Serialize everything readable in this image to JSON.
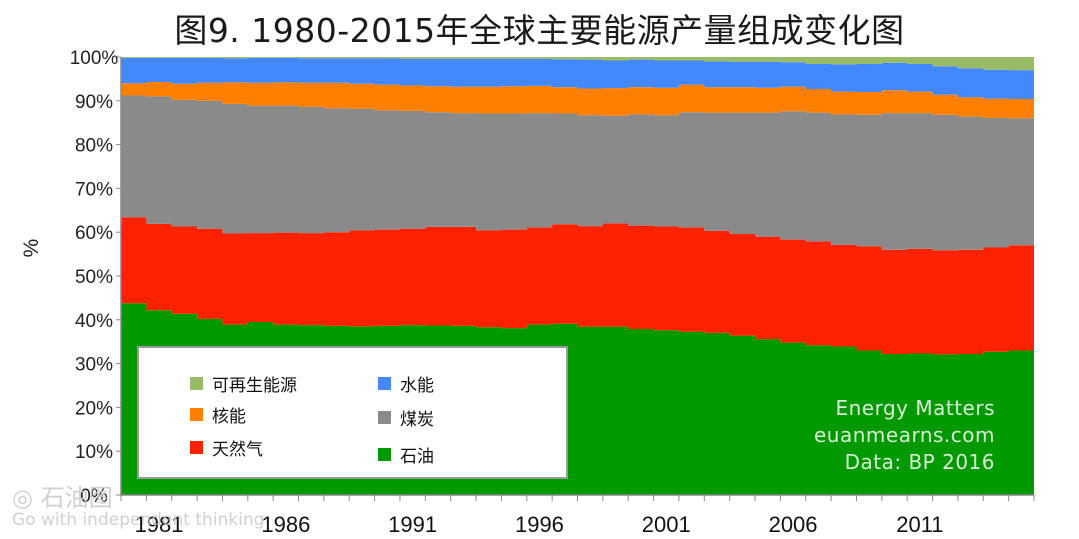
{
  "chart_data": {
    "type": "area",
    "stacked": true,
    "percent": true,
    "title": "图9. 1980-2015年全球主要能源产量组成变化图",
    "ylabel": "%",
    "xlabel": "",
    "ylim": [
      0,
      100
    ],
    "yticks": [
      "0%",
      "10%",
      "20%",
      "30%",
      "40%",
      "50%",
      "60%",
      "70%",
      "80%",
      "90%",
      "100%"
    ],
    "xtick_labels": [
      "1981",
      "1986",
      "1991",
      "1996",
      "2001",
      "2006",
      "2011"
    ],
    "x": [
      1980,
      1981,
      1982,
      1983,
      1984,
      1985,
      1986,
      1987,
      1988,
      1989,
      1990,
      1991,
      1992,
      1993,
      1994,
      1995,
      1996,
      1997,
      1998,
      1999,
      2000,
      2001,
      2002,
      2003,
      2004,
      2005,
      2006,
      2007,
      2008,
      2009,
      2010,
      2011,
      2012,
      2013,
      2014,
      2015
    ],
    "grid": false,
    "legend_position": "bottom-left",
    "series": [
      {
        "name": "石油",
        "color": "#009900",
        "values": [
          43.8,
          42.2,
          41.4,
          40.2,
          38.9,
          39.5,
          38.9,
          38.8,
          38.6,
          38.5,
          38.6,
          38.8,
          38.7,
          38.6,
          38.3,
          38.1,
          38.9,
          39.1,
          38.4,
          38.4,
          37.9,
          37.6,
          37.3,
          37.0,
          36.4,
          35.6,
          34.8,
          34.2,
          33.9,
          33.0,
          32.2,
          32.3,
          32.1,
          32.2,
          32.7,
          33.0
        ]
      },
      {
        "name": "天然气",
        "color": "#ff2200",
        "values": [
          19.6,
          19.7,
          19.9,
          20.6,
          20.8,
          20.3,
          21.0,
          21.0,
          21.4,
          21.9,
          22.0,
          22.0,
          22.5,
          22.6,
          22.1,
          22.5,
          22.2,
          22.7,
          23.0,
          23.6,
          23.6,
          23.7,
          23.8,
          23.3,
          23.2,
          23.4,
          23.5,
          23.7,
          23.2,
          23.8,
          23.8,
          23.9,
          23.8,
          23.8,
          23.8,
          24.0
        ]
      },
      {
        "name": "煤炭",
        "color": "#8a8a8a",
        "values": [
          27.8,
          29.1,
          28.9,
          29.2,
          29.6,
          29.1,
          29.0,
          28.8,
          28.3,
          27.8,
          27.2,
          26.9,
          26.2,
          26.0,
          26.7,
          26.5,
          26.1,
          25.3,
          25.3,
          24.6,
          25.4,
          25.4,
          26.3,
          27.0,
          27.7,
          28.3,
          29.3,
          29.4,
          29.8,
          30.0,
          31.2,
          31.0,
          30.9,
          30.4,
          29.6,
          29.0
        ]
      },
      {
        "name": "核能",
        "color": "#ff7f00",
        "values": [
          2.8,
          3.3,
          3.7,
          4.1,
          4.9,
          5.2,
          5.3,
          5.5,
          5.8,
          5.7,
          5.9,
          5.8,
          5.9,
          6.0,
          6.1,
          6.2,
          6.2,
          6.0,
          6.1,
          6.3,
          6.2,
          6.3,
          6.3,
          5.8,
          5.8,
          5.7,
          5.6,
          5.4,
          5.2,
          5.2,
          5.2,
          4.9,
          4.6,
          4.4,
          4.4,
          4.4
        ]
      },
      {
        "name": "水能",
        "color": "#4488ff",
        "values": [
          5.8,
          5.5,
          5.9,
          5.7,
          5.5,
          5.7,
          5.6,
          5.6,
          5.6,
          5.8,
          6.0,
          6.1,
          6.3,
          6.4,
          6.4,
          6.3,
          6.2,
          6.4,
          6.6,
          6.3,
          6.3,
          6.2,
          5.5,
          5.9,
          5.8,
          5.9,
          5.6,
          5.7,
          6.2,
          6.4,
          6.3,
          6.3,
          6.5,
          6.6,
          6.6,
          6.6
        ]
      },
      {
        "name": "可再生能源",
        "color": "#99bb66",
        "values": [
          0.2,
          0.2,
          0.2,
          0.2,
          0.3,
          0.2,
          0.2,
          0.3,
          0.3,
          0.3,
          0.3,
          0.4,
          0.4,
          0.4,
          0.4,
          0.4,
          0.4,
          0.5,
          0.6,
          0.8,
          0.6,
          0.8,
          0.8,
          1.0,
          1.1,
          1.1,
          1.2,
          1.6,
          1.7,
          1.6,
          1.3,
          1.6,
          2.1,
          2.6,
          2.9,
          3.0
        ]
      }
    ]
  },
  "legend": {
    "items": [
      {
        "label": "可再生能源",
        "color": "#99bb66"
      },
      {
        "label": "水能",
        "color": "#4488ff"
      },
      {
        "label": "核能",
        "color": "#ff7f00"
      },
      {
        "label": "煤炭",
        "color": "#8a8a8a"
      },
      {
        "label": "天然气",
        "color": "#ff2200"
      },
      {
        "label": "石油",
        "color": "#009900"
      }
    ]
  },
  "credits": {
    "line1": "Energy Matters",
    "line2": "euanmearns.com",
    "line3": "Data: BP 2016"
  },
  "watermark": {
    "logo": "石油图",
    "tagline": "Go with independent thinking"
  }
}
